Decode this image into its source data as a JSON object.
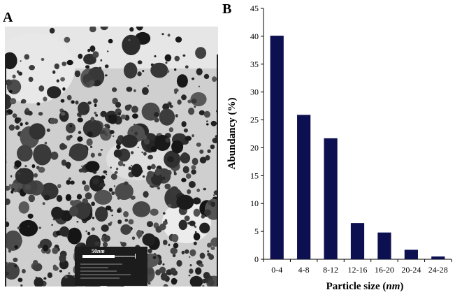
{
  "panels": {
    "left_label": "A",
    "right_label": "B"
  },
  "micrograph": {
    "scale_label_number": "50",
    "scale_label_unit": "nm"
  },
  "chart_data": {
    "type": "bar",
    "categories": [
      "0-4",
      "4-8",
      "8-12",
      "12-16",
      "16-20",
      "20-24",
      "24-28"
    ],
    "values": [
      40.1,
      25.9,
      21.7,
      6.5,
      4.8,
      1.7,
      0.5
    ],
    "xlabel_main": "Particle size (",
    "xlabel_unit": "nm",
    "xlabel_close": ")",
    "ylabel": "Abundancy (%)",
    "ylim": [
      0,
      45
    ],
    "yticks": [
      0,
      5,
      10,
      15,
      20,
      25,
      30,
      35,
      40,
      45
    ],
    "grid": false,
    "bar_color": "#0d1050"
  }
}
